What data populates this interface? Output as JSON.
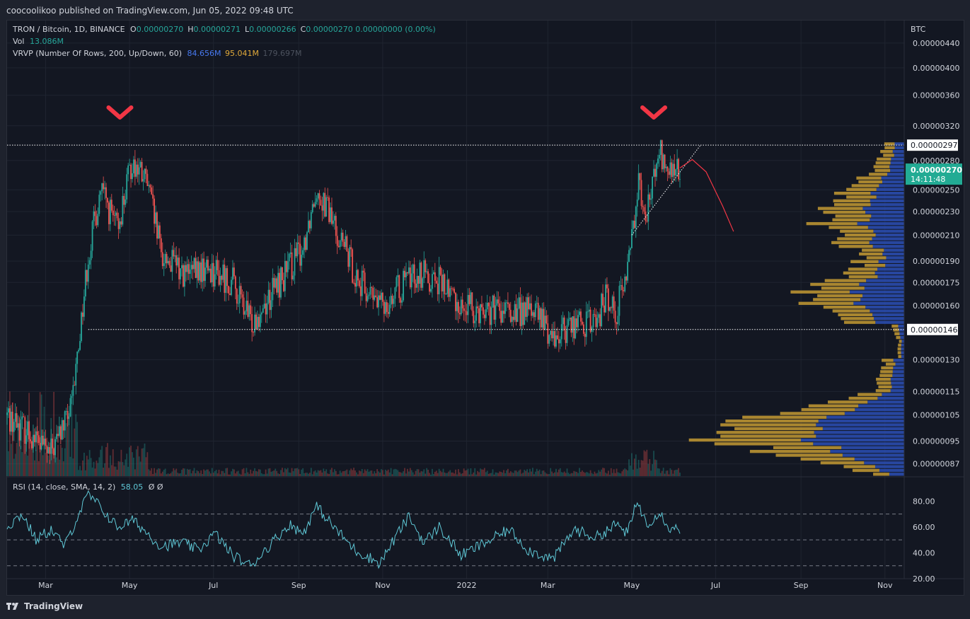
{
  "header": {
    "publisher_line": "coocoolikoo published on TradingView.com, Jun 05, 2022 09:48 UTC"
  },
  "legend": {
    "symbol": "TRON / Bitcoin, 1D, BINANCE",
    "ohlc": [
      {
        "k": "O",
        "v": "0.00000270"
      },
      {
        "k": "H",
        "v": "0.00000271"
      },
      {
        "k": "L",
        "v": "0.00000266"
      },
      {
        "k": "C",
        "v": "0.00000270"
      }
    ],
    "change": "0.00000000 (0.00%)",
    "vol_label": "Vol",
    "vol_value": "13.086M",
    "vrvp_label": "VRVP (Number Of Rows, 200, Up/Down, 60)",
    "vrvp_up": "84.656M",
    "vrvp_down": "95.041M",
    "vrvp_total": "179.697M",
    "rsi_label": "RSI (14, close, SMA, 14, 2)",
    "rsi_value": "58.05",
    "rsi_extra": "Ø Ø"
  },
  "colors": {
    "background": "#131722",
    "up": "#26a69a",
    "down": "#ef5350",
    "vp_up": "#2c4fb5",
    "vp_down": "#c49a33",
    "rsi": "#5fc8d6",
    "marker": "#f23645",
    "price_tag": "#22ab94"
  },
  "price_axis": {
    "unit": "BTC",
    "ticks": [
      "0.00000440",
      "0.00000400",
      "0.00000360",
      "0.00000320",
      "0.00000280",
      "0.00000250",
      "0.00000230",
      "0.00000210",
      "0.00000190",
      "0.00000175",
      "0.00000160",
      "0.00000130",
      "0.00000115",
      "0.00000105",
      "0.00000095",
      "0.00000087"
    ],
    "resistance_label": "0.00000297",
    "support_label": "0.00000146",
    "last_price": "0.00000270",
    "countdown": "14:11:48"
  },
  "time_axis": {
    "labels": [
      "Mar",
      "May",
      "Jul",
      "Sep",
      "Nov",
      "2022",
      "Mar",
      "May",
      "Jul",
      "Sep",
      "Nov"
    ]
  },
  "rsi_axis": {
    "labels": [
      "80.00",
      "60.00",
      "40.00",
      "20.00"
    ]
  },
  "chart_data": {
    "type": "candlestick",
    "title": "TRON / Bitcoin, 1D, BINANCE",
    "scale": "log",
    "ylim": [
      8.3e-07,
      4.8e-06
    ],
    "x_range": [
      "2021-02-01",
      "2022-11-15"
    ],
    "grid": true,
    "close_path": [
      [
        "2021-02-01",
        1.05e-06
      ],
      [
        "2021-02-18",
        9.8e-07
      ],
      [
        "2021-03-04",
        9e-07
      ],
      [
        "2021-03-20",
        1.08e-06
      ],
      [
        "2021-04-01",
        1.95e-06
      ],
      [
        "2021-04-10",
        2.5e-06
      ],
      [
        "2021-04-22",
        2.15e-06
      ],
      [
        "2021-05-03",
        2.8e-06
      ],
      [
        "2021-05-14",
        2.55e-06
      ],
      [
        "2021-05-24",
        1.95e-06
      ],
      [
        "2021-06-12",
        1.8e-06
      ],
      [
        "2021-06-28",
        1.85e-06
      ],
      [
        "2021-07-15",
        1.75e-06
      ],
      [
        "2021-07-28",
        1.5e-06
      ],
      [
        "2021-08-10",
        1.65e-06
      ],
      [
        "2021-08-25",
        1.85e-06
      ],
      [
        "2021-09-04",
        2e-06
      ],
      [
        "2021-09-14",
        2.55e-06
      ],
      [
        "2021-09-28",
        2.15e-06
      ],
      [
        "2021-10-15",
        1.75e-06
      ],
      [
        "2021-10-30",
        1.6e-06
      ],
      [
        "2021-11-10",
        1.68e-06
      ],
      [
        "2021-11-25",
        1.82e-06
      ],
      [
        "2021-12-10",
        1.78e-06
      ],
      [
        "2021-12-28",
        1.6e-06
      ],
      [
        "2022-01-15",
        1.58e-06
      ],
      [
        "2022-02-01",
        1.55e-06
      ],
      [
        "2022-02-18",
        1.58e-06
      ],
      [
        "2022-03-05",
        1.42e-06
      ],
      [
        "2022-03-20",
        1.5e-06
      ],
      [
        "2022-04-05",
        1.5e-06
      ],
      [
        "2022-04-12",
        1.65e-06
      ],
      [
        "2022-04-20",
        1.58e-06
      ],
      [
        "2022-04-28",
        1.85e-06
      ],
      [
        "2022-05-06",
        2.6e-06
      ],
      [
        "2022-05-12",
        2.3e-06
      ],
      [
        "2022-05-21",
        2.9e-06
      ],
      [
        "2022-05-28",
        2.65e-06
      ],
      [
        "2022-06-05",
        2.7e-06
      ]
    ],
    "levels": [
      {
        "price": 2.97e-06,
        "label": "0.00000297"
      },
      {
        "price": 1.46e-06,
        "label": "0.00000146"
      }
    ],
    "projection": [
      [
        "2022-06-05",
        2.72e-06
      ],
      [
        "2022-06-14",
        2.81e-06
      ],
      [
        "2022-06-24",
        2.68e-06
      ],
      [
        "2022-07-06",
        2.35e-06
      ],
      [
        "2022-07-14",
        2.13e-06
      ]
    ],
    "markers": [
      {
        "date": "2021-04-24"
      },
      {
        "date": "2022-05-17"
      }
    ],
    "volume_profile": {
      "up_total": "84.656M",
      "down_total": "95.041M",
      "total": "179.697M"
    },
    "rsi": {
      "ylim": [
        20,
        90
      ],
      "levels": [
        70,
        50,
        30
      ],
      "latest": 58.05,
      "path": [
        [
          "2021-02-01",
          60
        ],
        [
          "2021-02-12",
          70
        ],
        [
          "2021-02-22",
          50
        ],
        [
          "2021-03-05",
          58
        ],
        [
          "2021-03-15",
          45
        ],
        [
          "2021-03-25",
          70
        ],
        [
          "2021-04-01",
          85
        ],
        [
          "2021-04-10",
          75
        ],
        [
          "2021-04-22",
          60
        ],
        [
          "2021-05-04",
          65
        ],
        [
          "2021-05-14",
          55
        ],
        [
          "2021-05-24",
          45
        ],
        [
          "2021-06-08",
          48
        ],
        [
          "2021-06-20",
          42
        ],
        [
          "2021-07-02",
          55
        ],
        [
          "2021-07-15",
          38
        ],
        [
          "2021-07-28",
          30
        ],
        [
          "2021-08-10",
          45
        ],
        [
          "2021-08-25",
          62
        ],
        [
          "2021-09-04",
          55
        ],
        [
          "2021-09-14",
          76
        ],
        [
          "2021-09-28",
          58
        ],
        [
          "2021-10-12",
          42
        ],
        [
          "2021-10-30",
          32
        ],
        [
          "2021-11-12",
          55
        ],
        [
          "2021-11-20",
          68
        ],
        [
          "2021-12-01",
          48
        ],
        [
          "2021-12-12",
          60
        ],
        [
          "2021-12-28",
          38
        ],
        [
          "2022-01-15",
          48
        ],
        [
          "2022-02-01",
          58
        ],
        [
          "2022-02-15",
          42
        ],
        [
          "2022-03-05",
          35
        ],
        [
          "2022-03-20",
          58
        ],
        [
          "2022-04-05",
          52
        ],
        [
          "2022-04-20",
          62
        ],
        [
          "2022-04-28",
          55
        ],
        [
          "2022-05-05",
          80
        ],
        [
          "2022-05-12",
          62
        ],
        [
          "2022-05-21",
          72
        ],
        [
          "2022-05-28",
          60
        ],
        [
          "2022-06-05",
          58
        ]
      ]
    }
  }
}
